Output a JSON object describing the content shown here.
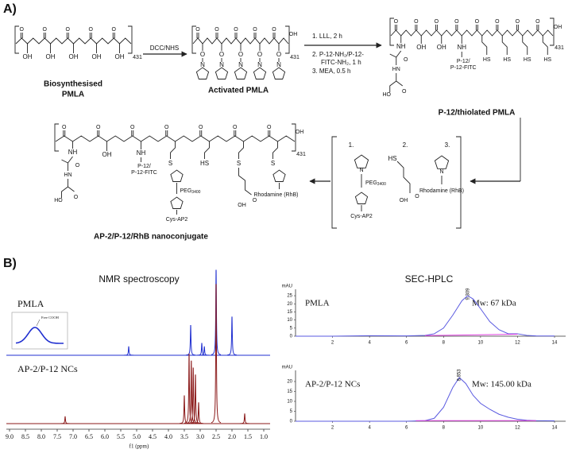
{
  "panel_labels": {
    "a": "A)",
    "b": "B)"
  },
  "scheme": {
    "reagents": {
      "activation": "DCC/NHS",
      "conjugation": [
        "1.  LLL, 2 h",
        "2.  P-12-NH₂/P-12-",
        "FITC-NH₂, 1 h",
        "3. MEA, 0.5 h"
      ]
    },
    "compounds": [
      [
        "Biosynthesised",
        "PMLA"
      ],
      [
        "Activated PMLA"
      ],
      [
        "P-12/thiolated PMLA"
      ],
      [
        "AP-2/P-12/RhB nanoconjugate"
      ]
    ],
    "repeat": "431",
    "atoms": {
      "OH": "OH",
      "O": "O",
      "N": "N",
      "NH": "NH",
      "HN": "HN",
      "HO": "HO",
      "HS": "HS",
      "S": "S"
    },
    "groups": {
      "p12": [
        "P-12/",
        "P-12-FITC"
      ],
      "peg": "PEG",
      "peg_sub": "3400",
      "cys": "Cys-AP2",
      "rhb": "Rhodamine (RhB)"
    },
    "box_numbers": [
      "1.",
      "2.",
      "3."
    ]
  },
  "chart_data": [
    {
      "type": "spectrum",
      "title": "NMR spectroscopy",
      "xlabel": "f1 (ppm)",
      "xlim": [
        9.1,
        0.8
      ],
      "xticks": [
        {
          "value": 9,
          "label": "9.0"
        },
        8.5,
        {
          "value": 8,
          "label": "8.0"
        },
        7.5,
        {
          "value": 7,
          "label": "7.0"
        },
        6.5,
        {
          "value": 6,
          "label": "6.0"
        },
        5.5,
        {
          "value": 5,
          "label": "5.0"
        },
        4.5,
        {
          "value": 4,
          "label": "4.0"
        },
        3.5,
        {
          "value": 3,
          "label": "3.0"
        },
        2.5,
        {
          "value": 2,
          "label": "2.0"
        },
        1.5,
        {
          "value": 1,
          "label": "1.0"
        }
      ],
      "inset_label": "Free COOH",
      "series": [
        {
          "name": "PMLA",
          "color": "#2130d0",
          "x": [
            5.25,
            3.3,
            2.95,
            2.87,
            2.5,
            2.0
          ],
          "values": [
            10,
            35,
            14,
            10,
            100,
            45
          ]
        },
        {
          "name": "AP-2/P-12 NCs",
          "color": "#8b1a1a",
          "x": [
            7.25,
            3.5,
            3.35,
            3.28,
            3.22,
            3.15,
            3.05,
            2.5,
            1.6
          ],
          "values": [
            5,
            20,
            50,
            45,
            40,
            35,
            15,
            100,
            7
          ]
        }
      ]
    },
    {
      "type": "line",
      "title": "SEC-HPLC",
      "label": "PMLA",
      "annotation": "Mw: 67 kDa",
      "ylabel": "mAU",
      "peak_x": 9.309,
      "xlim": [
        0,
        14.6
      ],
      "xticks": [
        2,
        4,
        6,
        8,
        10,
        12,
        14
      ],
      "ylim": [
        0,
        27
      ],
      "yticks": [
        0,
        5,
        10,
        15,
        20,
        25
      ],
      "series": [
        {
          "color": "#5a5ae0",
          "x": [
            0,
            2,
            4,
            6,
            7,
            7.5,
            8,
            8.5,
            9,
            9.3,
            9.6,
            10,
            10.5,
            11,
            11.5,
            12,
            12.5,
            13,
            14
          ],
          "values": [
            0,
            0,
            0.3,
            0.2,
            0.5,
            1.5,
            5,
            13,
            22,
            25,
            23,
            17,
            9,
            4,
            1.5,
            1.5,
            0.5,
            0.2,
            0.1
          ]
        },
        {
          "color": "#e040e0",
          "x": [
            7,
            12
          ],
          "values": [
            0.4,
            1.2
          ]
        }
      ]
    },
    {
      "type": "line",
      "label": "AP-2/P-12 NCs",
      "annotation": "Mw: 145.00 kDa",
      "ylabel": "mAU",
      "peak_x": 8.853,
      "xlim": [
        0,
        14.6
      ],
      "xticks": [
        2,
        4,
        6,
        8,
        10,
        12,
        14
      ],
      "ylim": [
        0,
        24
      ],
      "yticks": [
        0,
        5,
        10,
        15,
        20
      ],
      "series": [
        {
          "color": "#5a5ae0",
          "x": [
            0,
            2,
            4,
            6,
            7,
            7.5,
            8,
            8.5,
            8.85,
            9.2,
            9.6,
            10,
            10.5,
            11,
            11.5,
            12,
            12.5,
            13,
            14
          ],
          "values": [
            0,
            0,
            0,
            0,
            0.3,
            1.5,
            7,
            17,
            22,
            19,
            13,
            9,
            6,
            3.5,
            2,
            1,
            0.5,
            0.3,
            0.2
          ]
        },
        {
          "color": "#e040e0",
          "x": [
            6.5,
            13
          ],
          "values": [
            0.3,
            0.3
          ]
        }
      ]
    }
  ]
}
